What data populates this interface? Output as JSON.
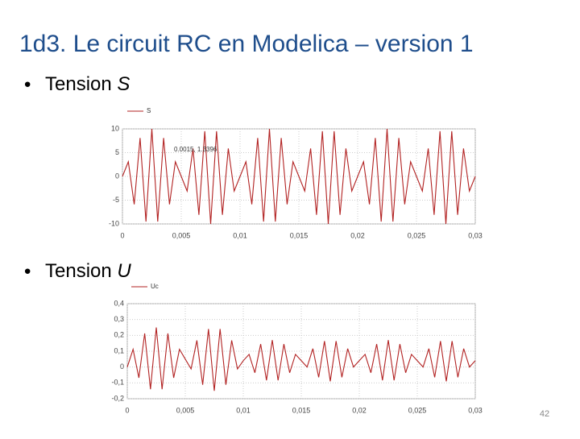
{
  "title": "1d3. Le circuit RC en Modelica – version 1",
  "bullets": [
    {
      "text": "Tension",
      "var": "S"
    },
    {
      "text": "Tension",
      "var": "U"
    }
  ],
  "page_number": "42",
  "chart_data": [
    {
      "type": "line",
      "annotation": "0.0015, 1.3396",
      "x": [
        0,
        0.0005,
        0.001,
        0.0015,
        0.002,
        0.0025,
        0.003,
        0.0035,
        0.004,
        0.0045,
        0.005,
        0.0055,
        0.006,
        0.0065,
        0.007,
        0.0075,
        0.008,
        0.0085,
        0.009,
        0.0095,
        0.01,
        0.0105,
        0.011,
        0.0115,
        0.012,
        0.0125,
        0.013,
        0.0135,
        0.014,
        0.0145,
        0.015,
        0.0155,
        0.016,
        0.0165,
        0.017,
        0.0175,
        0.018,
        0.0185,
        0.019,
        0.0195,
        0.02,
        0.0205,
        0.021,
        0.0215,
        0.022,
        0.0225,
        0.023,
        0.0235,
        0.024,
        0.0245,
        0.025,
        0.0255,
        0.026,
        0.0265,
        0.027,
        0.0275,
        0.028,
        0.0285,
        0.029,
        0.0295,
        0.03
      ],
      "series": [
        {
          "name": "S",
          "color": "#b22222",
          "values": [
            0,
            3.09,
            -5.88,
            8.09,
            -9.51,
            10,
            -9.51,
            8.09,
            -5.88,
            3.09,
            0,
            -3.09,
            5.88,
            -8.09,
            9.51,
            -10,
            9.51,
            -8.09,
            5.88,
            -3.09,
            0,
            3.09,
            -5.88,
            8.09,
            -9.51,
            10,
            -9.51,
            8.09,
            -5.88,
            3.09,
            0,
            -3.09,
            5.88,
            -8.09,
            9.51,
            -10,
            9.51,
            -8.09,
            5.88,
            -3.09,
            0,
            3.09,
            -5.88,
            8.09,
            -9.51,
            10,
            -9.51,
            8.09,
            -5.88,
            3.09,
            0,
            -3.09,
            5.88,
            -8.09,
            9.51,
            -10,
            9.51,
            -8.09,
            5.88,
            -3.09,
            0
          ]
        }
      ],
      "xlim": [
        0,
        0.03
      ],
      "xticks": [
        0,
        {
          "value": 0.005,
          "label": "0,005"
        },
        {
          "value": 0.01,
          "label": "0,01"
        },
        {
          "value": 0.015,
          "label": "0,015"
        },
        {
          "value": 0.02,
          "label": "0,02"
        },
        {
          "value": 0.025,
          "label": "0,025"
        },
        {
          "value": 0.03,
          "label": "0,03"
        }
      ],
      "ylim": [
        -10,
        10
      ],
      "yticks": [
        -10,
        -5,
        0,
        5,
        10
      ],
      "grid": true
    },
    {
      "type": "line",
      "x": [
        0,
        0.0005,
        0.001,
        0.0015,
        0.002,
        0.0025,
        0.003,
        0.0035,
        0.004,
        0.0045,
        0.005,
        0.0055,
        0.006,
        0.0065,
        0.007,
        0.0075,
        0.008,
        0.0085,
        0.009,
        0.0095,
        0.01,
        0.0105,
        0.011,
        0.0115,
        0.012,
        0.0125,
        0.013,
        0.0135,
        0.014,
        0.0145,
        0.015,
        0.0155,
        0.016,
        0.0165,
        0.017,
        0.0175,
        0.018,
        0.0185,
        0.019,
        0.0195,
        0.02,
        0.0205,
        0.021,
        0.0215,
        0.022,
        0.0225,
        0.023,
        0.0235,
        0.024,
        0.0245,
        0.025,
        0.0255,
        0.026,
        0.0265,
        0.027,
        0.0275,
        0.028,
        0.0285,
        0.029,
        0.0295,
        0.03
      ],
      "series": [
        {
          "name": "Uc",
          "color": "#b22222",
          "values": [
            0,
            0.112,
            -0.068,
            0.212,
            -0.14,
            0.25,
            -0.14,
            0.212,
            -0.068,
            0.112,
            0.05,
            -0.012,
            0.168,
            -0.112,
            0.24,
            -0.15,
            0.24,
            -0.112,
            0.168,
            -0.012,
            0.04,
            0.08,
            -0.036,
            0.145,
            -0.084,
            0.17,
            -0.084,
            0.145,
            -0.036,
            0.08,
            0.04,
            0,
            0.116,
            -0.065,
            0.164,
            -0.09,
            0.164,
            -0.065,
            0.116,
            0,
            0.04,
            0.08,
            -0.036,
            0.145,
            -0.084,
            0.17,
            -0.084,
            0.145,
            -0.036,
            0.08,
            0.04,
            0,
            0.116,
            -0.065,
            0.164,
            -0.09,
            0.164,
            -0.065,
            0.116,
            0,
            0.04
          ]
        }
      ],
      "xlim": [
        0,
        0.03
      ],
      "xticks": [
        0,
        {
          "value": 0.005,
          "label": "0,005"
        },
        {
          "value": 0.01,
          "label": "0,01"
        },
        {
          "value": 0.015,
          "label": "0,015"
        },
        {
          "value": 0.02,
          "label": "0,02"
        },
        {
          "value": 0.025,
          "label": "0,025"
        },
        {
          "value": 0.03,
          "label": "0,03"
        }
      ],
      "ylim": [
        -0.2,
        0.4
      ],
      "yticks": [
        {
          "value": -0.2,
          "label": "-0,2"
        },
        {
          "value": -0.1,
          "label": "-0,1"
        },
        0,
        {
          "value": 0.1,
          "label": "0,1"
        },
        {
          "value": 0.2,
          "label": "0,2"
        },
        {
          "value": 0.3,
          "label": "0,3"
        },
        {
          "value": 0.4,
          "label": "0,4"
        }
      ],
      "grid": true
    }
  ]
}
